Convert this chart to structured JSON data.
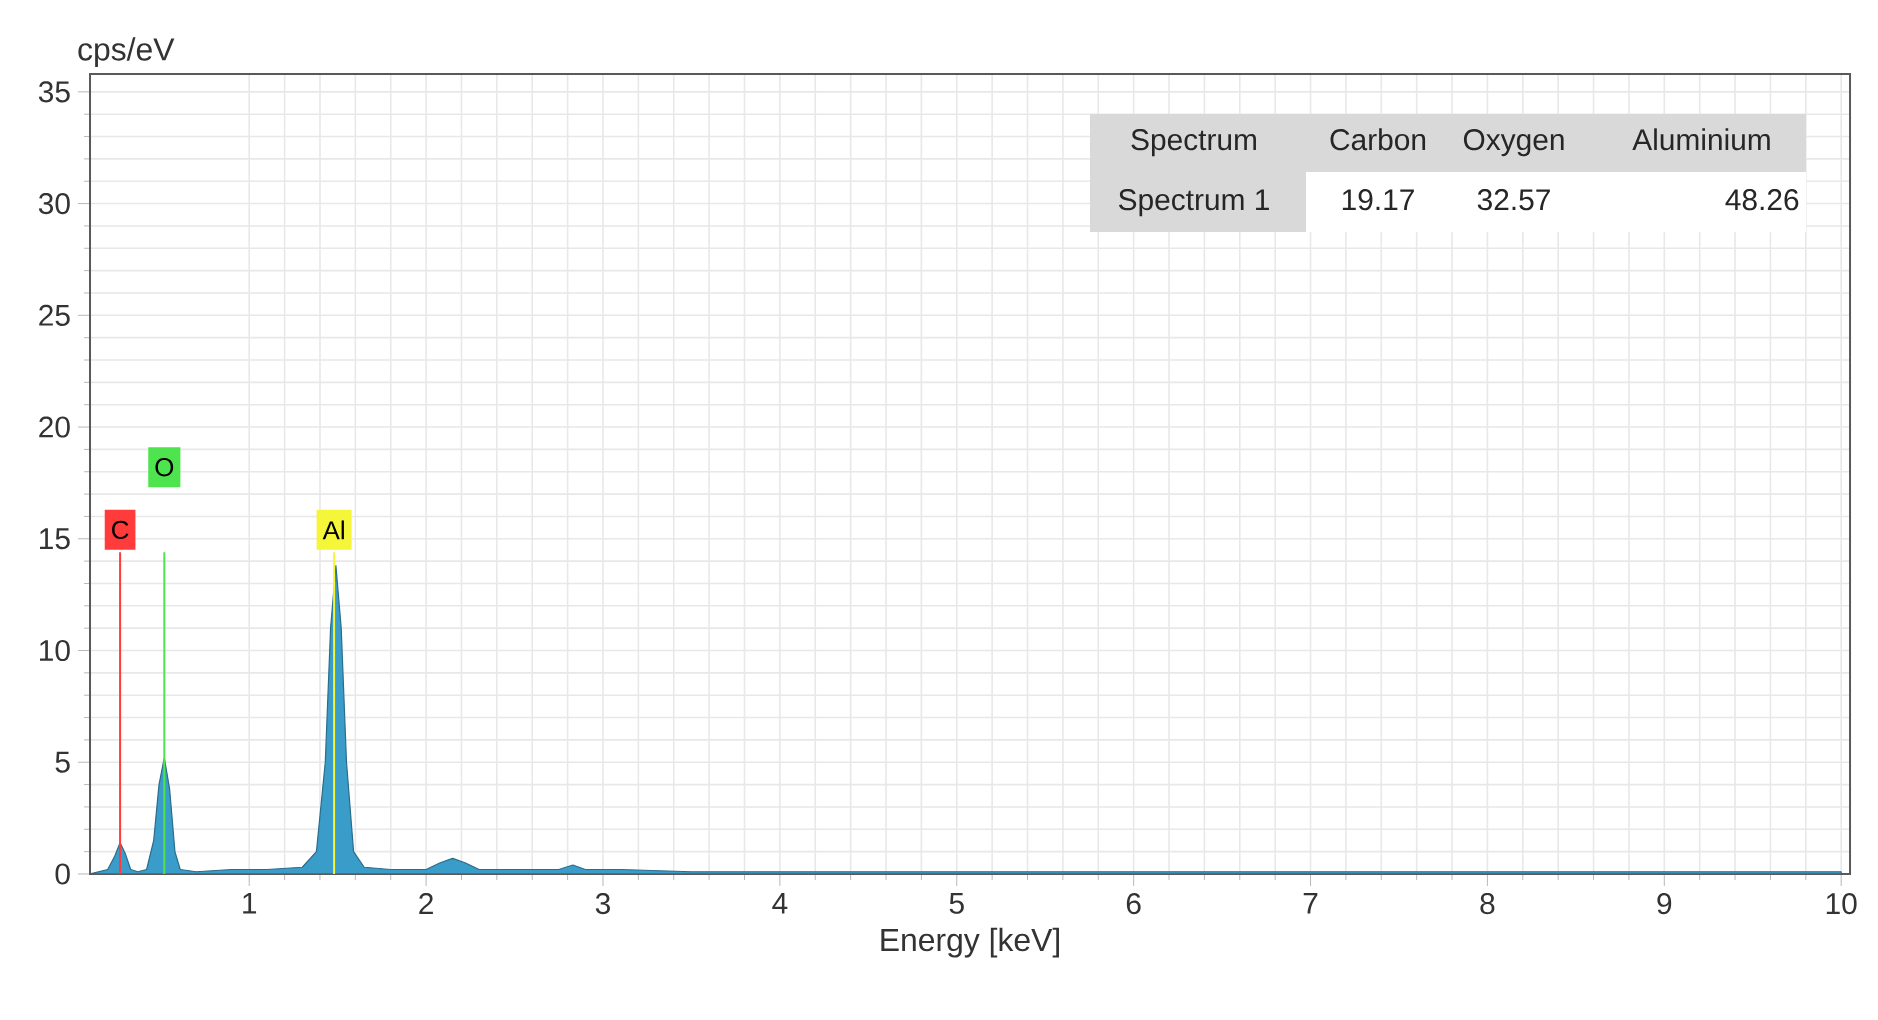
{
  "chart_data": {
    "type": "area",
    "xlabel": "Energy [keV]",
    "ylabel": "cps/eV",
    "xlim": [
      0.1,
      10.05
    ],
    "ylim": [
      0,
      35.8
    ],
    "xticks": [
      1,
      2,
      3,
      4,
      5,
      6,
      7,
      8,
      9,
      10
    ],
    "yticks": [
      0,
      5,
      10,
      15,
      20,
      25,
      30,
      35
    ],
    "grid": true,
    "series": [
      {
        "color": "#3a9cc8",
        "x": [
          0.1,
          0.15,
          0.2,
          0.24,
          0.27,
          0.3,
          0.33,
          0.37,
          0.42,
          0.46,
          0.49,
          0.52,
          0.55,
          0.58,
          0.61,
          0.7,
          0.9,
          1.1,
          1.3,
          1.38,
          1.43,
          1.46,
          1.49,
          1.52,
          1.55,
          1.59,
          1.65,
          1.8,
          2.0,
          2.08,
          2.15,
          2.22,
          2.3,
          2.6,
          2.75,
          2.83,
          2.9,
          3.1,
          3.5,
          4,
          5,
          6,
          7,
          8,
          9,
          10
        ],
        "values": [
          0,
          0.1,
          0.2,
          0.8,
          1.4,
          0.9,
          0.2,
          0.1,
          0.2,
          1.5,
          4.0,
          5.2,
          3.8,
          1.0,
          0.2,
          0.1,
          0.2,
          0.2,
          0.3,
          1.0,
          5,
          11,
          13.8,
          11,
          5,
          1.0,
          0.3,
          0.2,
          0.2,
          0.5,
          0.7,
          0.5,
          0.2,
          0.2,
          0.2,
          0.4,
          0.2,
          0.2,
          0.1,
          0.1,
          0.1,
          0.1,
          0.1,
          0.1,
          0.1,
          0.1
        ]
      }
    ],
    "ref_lines": [
      {
        "axis": "x",
        "value": 0.27,
        "label": "C",
        "color": "#ff3b3b"
      },
      {
        "axis": "x",
        "value": 0.52,
        "label": "O",
        "color": "#4ee44e"
      },
      {
        "axis": "x",
        "value": 1.48,
        "label": "Al",
        "color": "#f5f53a"
      }
    ],
    "annotations": [
      "Spectrum",
      "Carbon",
      "Oxygen",
      "Aluminium",
      "Spectrum 1",
      "19.17",
      "32.57",
      "48.26"
    ]
  }
}
